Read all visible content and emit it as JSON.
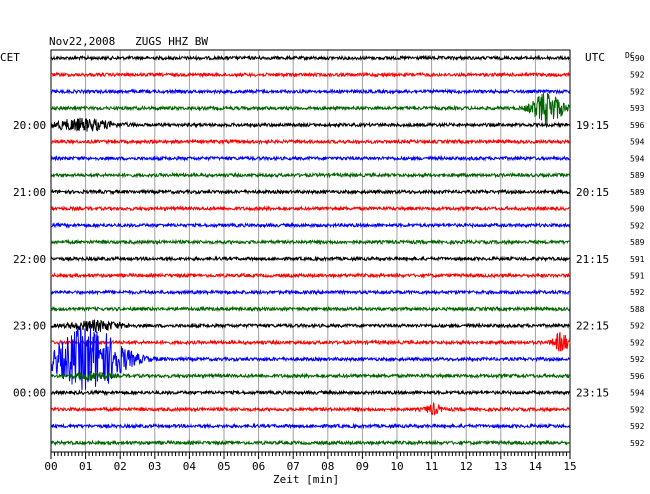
{
  "chart_data": {
    "type": "line",
    "title": "Nov22,2008   ZUGS HHZ BW",
    "left_label": "CET",
    "right_label": "UTC",
    "dc_label": "DC",
    "xlabel": "Zeit [min]",
    "x_ticks": [
      "00",
      "01",
      "02",
      "03",
      "04",
      "05",
      "06",
      "07",
      "08",
      "09",
      "10",
      "11",
      "12",
      "13",
      "14",
      "15"
    ],
    "x_range": [
      0,
      15
    ],
    "row_colors": [
      "#000000",
      "#ff0000",
      "#0000ff",
      "#006400"
    ],
    "rows": 24,
    "left_times": [
      {
        "row": 4,
        "text": "20:00"
      },
      {
        "row": 8,
        "text": "21:00"
      },
      {
        "row": 12,
        "text": "22:00"
      },
      {
        "row": 16,
        "text": "23:00"
      },
      {
        "row": 20,
        "text": "00:00"
      }
    ],
    "right_times": [
      {
        "row": 4,
        "text": "19:15"
      },
      {
        "row": 8,
        "text": "20:15"
      },
      {
        "row": 12,
        "text": "21:15"
      },
      {
        "row": 16,
        "text": "22:15"
      },
      {
        "row": 20,
        "text": "23:15"
      }
    ],
    "dc_values": [
      "590",
      "592",
      "592",
      "593",
      "596",
      "594",
      "594",
      "589",
      "589",
      "590",
      "592",
      "589",
      "591",
      "591",
      "592",
      "588",
      "592",
      "592",
      "592",
      "596",
      "594",
      "592",
      "592",
      "592"
    ],
    "events": [
      {
        "row": 3,
        "minute": 14.35,
        "width_min": 0.6,
        "amplitude": 2.0
      },
      {
        "row": 4,
        "minute": 0.9,
        "width_min": 1.2,
        "amplitude": 0.7
      },
      {
        "row": 16,
        "minute": 1.3,
        "width_min": 1.0,
        "amplitude": 0.6
      },
      {
        "row": 17,
        "minute": 14.75,
        "width_min": 0.3,
        "amplitude": 1.2
      },
      {
        "row": 18,
        "minute": 1.1,
        "width_min": 1.4,
        "amplitude": 4.0
      },
      {
        "row": 19,
        "minute": 1.2,
        "width_min": 0.6,
        "amplitude": 0.5
      },
      {
        "row": 21,
        "minute": 11.05,
        "width_min": 0.3,
        "amplitude": 0.6
      }
    ],
    "grid": true
  }
}
